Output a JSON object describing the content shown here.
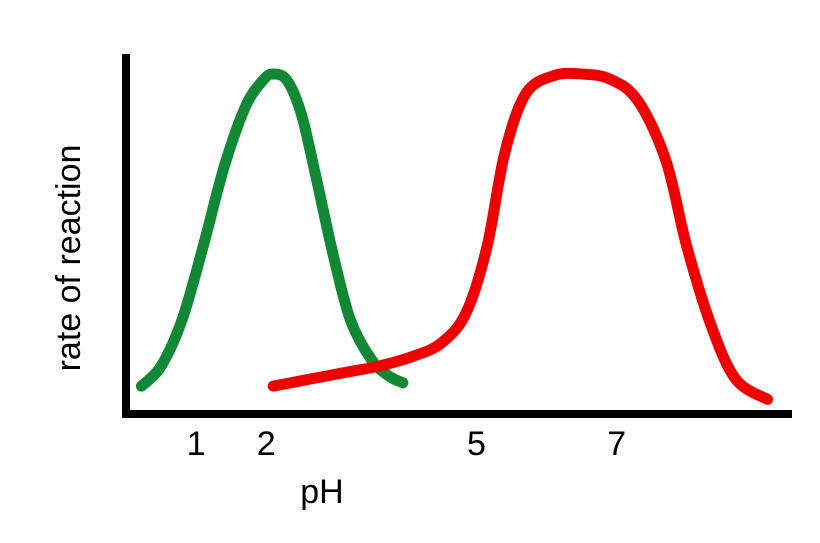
{
  "chart_data": {
    "type": "line",
    "title": "",
    "xlabel": "pH",
    "ylabel": "rate of reaction",
    "xlim": [
      0,
      9.5
    ],
    "ylim": [
      0,
      1
    ],
    "x_ticks": [
      {
        "value": 1,
        "label": "1"
      },
      {
        "value": 2,
        "label": "2"
      },
      {
        "value": 5,
        "label": "5"
      },
      {
        "value": 7,
        "label": "7"
      }
    ],
    "grid": false,
    "legend": "none",
    "series": [
      {
        "color": "#118833",
        "x": [
          0.22,
          0.5,
          0.8,
          1.1,
          1.4,
          1.7,
          1.95,
          2.1,
          2.3,
          2.5,
          2.7,
          2.95,
          3.2,
          3.5,
          3.75,
          3.95
        ],
        "y": [
          0.06,
          0.12,
          0.26,
          0.48,
          0.72,
          0.9,
          0.98,
          1.0,
          0.98,
          0.88,
          0.7,
          0.46,
          0.26,
          0.14,
          0.09,
          0.07
        ]
      },
      {
        "color": "#ee0000",
        "x": [
          2.1,
          2.6,
          3.1,
          3.6,
          4.1,
          4.5,
          4.85,
          5.15,
          5.4,
          5.7,
          6.1,
          6.5,
          6.9,
          7.3,
          7.7,
          8.0,
          8.35,
          8.7,
          9.15
        ],
        "y": [
          0.06,
          0.08,
          0.1,
          0.12,
          0.15,
          0.19,
          0.28,
          0.48,
          0.76,
          0.94,
          0.995,
          1.0,
          0.985,
          0.92,
          0.74,
          0.48,
          0.24,
          0.08,
          0.02
        ]
      }
    ]
  }
}
